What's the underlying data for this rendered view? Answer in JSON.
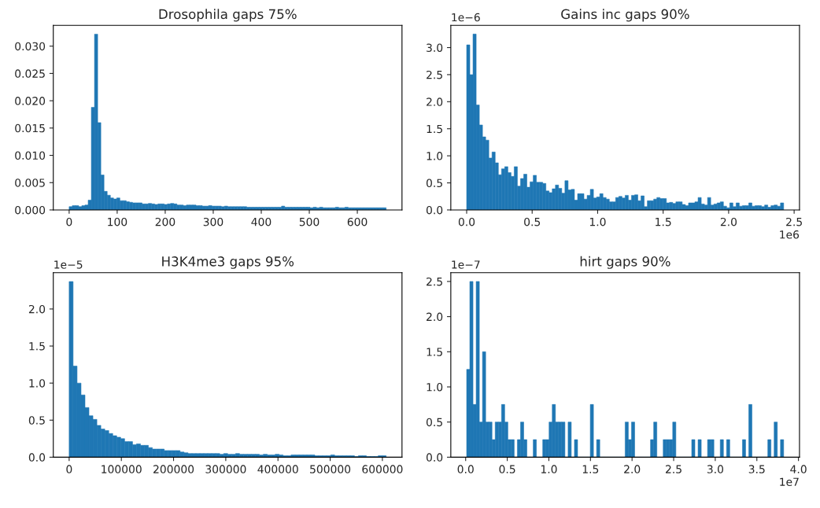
{
  "chart_data": [
    {
      "type": "histogram",
      "title": "Drosophila gaps 75%",
      "color": "#1f77b4",
      "bins": [
        0,
        6.6,
        13.2,
        19.8,
        26.4,
        33,
        39.6,
        46.2,
        52.8,
        59.4,
        66,
        72.6,
        79.2,
        85.8,
        92.4,
        99,
        105.6,
        112.2,
        118.8,
        125.4,
        132,
        138.6,
        145.2,
        151.8,
        158.4,
        165,
        171.6,
        178.2,
        184.8,
        191.4,
        198,
        204.6,
        211.2,
        217.8,
        224.4,
        231,
        237.6,
        244.2,
        250.8,
        257.4,
        264,
        270.6,
        277.2,
        283.8,
        290.4,
        297,
        303.6,
        310.2,
        316.8,
        323.4,
        330,
        336.6,
        343.2,
        349.8,
        356.4,
        363,
        369.6,
        376.2,
        382.8,
        389.4,
        396,
        402.6,
        409.2,
        415.8,
        422.4,
        429,
        435.6,
        442.2,
        448.8,
        455.4,
        462,
        468.6,
        475.2,
        481.8,
        488.4,
        495,
        501.6,
        508.2,
        514.8,
        521.4,
        528,
        534.6,
        541.2,
        547.8,
        554.4,
        561,
        567.6,
        574.2,
        580.8,
        587.4,
        594,
        600.6,
        607.2,
        613.8,
        620.4,
        627,
        633.6,
        640.2,
        646.8,
        653.4,
        660
      ],
      "values": [
        0.0006,
        0.0008,
        0.0008,
        0.0006,
        0.0008,
        0.0009,
        0.0018,
        0.0188,
        0.0322,
        0.016,
        0.0064,
        0.0034,
        0.0027,
        0.0022,
        0.002,
        0.0022,
        0.0017,
        0.0017,
        0.0015,
        0.0014,
        0.0013,
        0.0013,
        0.0013,
        0.0011,
        0.0011,
        0.0012,
        0.0011,
        0.001,
        0.0011,
        0.0011,
        0.001,
        0.0011,
        0.0012,
        0.0011,
        0.0009,
        0.0009,
        0.0008,
        0.0009,
        0.0009,
        0.0009,
        0.0008,
        0.0008,
        0.0007,
        0.0007,
        0.0008,
        0.0007,
        0.0007,
        0.0007,
        0.0006,
        0.0007,
        0.0006,
        0.0006,
        0.0006,
        0.0006,
        0.0006,
        0.0006,
        0.0005,
        0.0005,
        0.0005,
        0.0005,
        0.0005,
        0.0005,
        0.0005,
        0.0005,
        0.0005,
        0.0005,
        0.0005,
        0.0007,
        0.0005,
        0.0005,
        0.0005,
        0.0005,
        0.0005,
        0.0005,
        0.0005,
        0.0005,
        0.0004,
        0.0005,
        0.0004,
        0.0005,
        0.0004,
        0.0004,
        0.0004,
        0.0004,
        0.0005,
        0.0004,
        0.0004,
        0.0005,
        0.0004,
        0.0004,
        0.0004,
        0.0004,
        0.0004,
        0.0004,
        0.0004,
        0.0004,
        0.0004,
        0.0004,
        0.0004,
        0.0004
      ],
      "xlim": [
        -33,
        693
      ],
      "xticks": [
        0,
        100,
        200,
        300,
        400,
        500,
        600
      ],
      "ylim": [
        0,
        0.0338
      ],
      "yticks": [
        {
          "value": 0,
          "label": "0.000"
        },
        {
          "value": 0.005,
          "label": "0.005"
        },
        {
          "value": 0.01,
          "label": "0.010"
        },
        {
          "value": 0.015,
          "label": "0.015"
        },
        {
          "value": 0.02,
          "label": "0.020"
        },
        {
          "value": 0.025,
          "label": "0.025"
        },
        {
          "value": 0.03,
          "label": "0.030"
        }
      ]
    },
    {
      "type": "histogram",
      "title": "Gains inc gaps 90%",
      "color": "#1f77b4",
      "annotations": [
        "1e−6",
        "1e6"
      ],
      "bins": [
        0,
        0.0242,
        0.0484,
        0.0726,
        0.0968,
        0.121,
        0.1452,
        0.1694,
        0.1936,
        0.2178,
        0.242,
        0.2662,
        0.2904,
        0.3146,
        0.3388,
        0.363,
        0.3872,
        0.4114,
        0.4356,
        0.4598,
        0.484,
        0.5082,
        0.5324,
        0.5566,
        0.5808,
        0.605,
        0.6292,
        0.6534,
        0.6776,
        0.7018,
        0.726,
        0.7502,
        0.7744,
        0.7986,
        0.8228,
        0.847,
        0.8712,
        0.8954,
        0.9196,
        0.9438,
        0.968,
        0.9922,
        1.0164,
        1.0406,
        1.0648,
        1.089,
        1.1132,
        1.1374,
        1.1616,
        1.1858,
        1.21,
        1.2342,
        1.2584,
        1.2826,
        1.3068,
        1.331,
        1.3552,
        1.3794,
        1.4036,
        1.4278,
        1.452,
        1.4762,
        1.5004,
        1.5246,
        1.5488,
        1.573,
        1.5972,
        1.6214,
        1.6456,
        1.6698,
        1.694,
        1.7182,
        1.7424,
        1.7666,
        1.7908,
        1.815,
        1.8392,
        1.8634,
        1.8876,
        1.9118,
        1.936,
        1.9602,
        1.9844,
        2.0086,
        2.0328,
        2.057,
        2.0812,
        2.1054,
        2.1296,
        2.1538,
        2.178,
        2.2022,
        2.2264,
        2.2506,
        2.2748,
        2.299,
        2.3232,
        2.3474,
        2.3716,
        2.3958,
        2.42
      ],
      "values": [
        3.05,
        2.5,
        3.25,
        1.94,
        1.57,
        1.35,
        1.29,
        0.96,
        1.07,
        0.87,
        0.65,
        0.76,
        0.8,
        0.69,
        0.62,
        0.8,
        0.44,
        0.58,
        0.66,
        0.42,
        0.52,
        0.64,
        0.51,
        0.51,
        0.49,
        0.35,
        0.32,
        0.39,
        0.46,
        0.4,
        0.31,
        0.54,
        0.37,
        0.38,
        0.18,
        0.3,
        0.3,
        0.2,
        0.27,
        0.38,
        0.22,
        0.24,
        0.3,
        0.23,
        0.2,
        0.15,
        0.15,
        0.23,
        0.25,
        0.22,
        0.27,
        0.18,
        0.27,
        0.28,
        0.17,
        0.26,
        0.06,
        0.17,
        0.17,
        0.2,
        0.23,
        0.21,
        0.21,
        0.13,
        0.14,
        0.12,
        0.15,
        0.15,
        0.1,
        0.08,
        0.13,
        0.13,
        0.15,
        0.23,
        0.11,
        0.09,
        0.23,
        0.09,
        0.11,
        0.13,
        0.15,
        0.07,
        0.04,
        0.13,
        0.06,
        0.13,
        0.07,
        0.08,
        0.08,
        0.13,
        0.07,
        0.08,
        0.08,
        0.06,
        0.09,
        0.05,
        0.08,
        0.09,
        0.07,
        0.13
      ],
      "xlim": [
        -0.121,
        2.541
      ],
      "xticks": [
        {
          "value": 0,
          "label": "0.0"
        },
        0.5,
        {
          "value": 1,
          "label": "1.0"
        },
        1.5,
        {
          "value": 2,
          "label": "2.0"
        },
        2.5
      ],
      "ylim": [
        0,
        3.41
      ],
      "yticks": [
        {
          "value": 0,
          "label": "0.0"
        },
        0.5,
        {
          "value": 1,
          "label": "1.0"
        },
        1.5,
        {
          "value": 2,
          "label": "2.0"
        },
        2.5,
        {
          "value": 3,
          "label": "3.0"
        }
      ]
    },
    {
      "type": "histogram",
      "title": "H3K4me3 gaps 95%",
      "color": "#1f77b4",
      "annotations": [
        "1e−5"
      ],
      "bins": [
        0,
        7590,
        15180,
        22770,
        30360,
        37950,
        45540,
        53130,
        60720,
        68310,
        75900,
        83490,
        91080,
        98670,
        106260,
        113850,
        121440,
        129030,
        136620,
        144210,
        151800,
        159390,
        166980,
        174570,
        182160,
        189750,
        197340,
        204930,
        212520,
        220110,
        227700,
        235290,
        242880,
        250470,
        258060,
        265650,
        273240,
        280830,
        288420,
        296010,
        303600,
        311190,
        318780,
        326370,
        333960,
        341550,
        349140,
        356730,
        364320,
        371910,
        379500,
        387090,
        394680,
        402270,
        409860,
        417450,
        425040,
        432630,
        440220,
        447810,
        455400,
        462990,
        470580,
        478170,
        485760,
        493350,
        500940,
        508530,
        516120,
        523710,
        531300,
        538890,
        546480,
        554070,
        561660,
        569250,
        576840,
        584430,
        592020,
        599610,
        607200
      ],
      "values": [
        2.37,
        1.23,
        1.0,
        0.84,
        0.67,
        0.56,
        0.51,
        0.43,
        0.38,
        0.36,
        0.32,
        0.29,
        0.27,
        0.25,
        0.21,
        0.21,
        0.17,
        0.18,
        0.16,
        0.16,
        0.13,
        0.11,
        0.11,
        0.11,
        0.09,
        0.09,
        0.09,
        0.09,
        0.07,
        0.06,
        0.05,
        0.05,
        0.05,
        0.05,
        0.05,
        0.05,
        0.05,
        0.05,
        0.04,
        0.05,
        0.04,
        0.04,
        0.05,
        0.04,
        0.04,
        0.04,
        0.04,
        0.04,
        0.03,
        0.04,
        0.03,
        0.03,
        0.04,
        0.03,
        0.02,
        0.02,
        0.03,
        0.03,
        0.03,
        0.03,
        0.03,
        0.03,
        0.02,
        0.02,
        0.02,
        0.02,
        0.03,
        0.02,
        0.02,
        0.02,
        0.02,
        0.02,
        0.01,
        0.02,
        0.02,
        0.01,
        0.01,
        0.01,
        0.02,
        0.02
      ],
      "xlim": [
        -30360,
        637560
      ],
      "xticks": [
        0,
        100000,
        200000,
        300000,
        400000,
        500000,
        600000
      ],
      "ylim": [
        0,
        2.49
      ],
      "yticks": [
        {
          "value": 0,
          "label": "0.0"
        },
        0.5,
        {
          "value": 1,
          "label": "1.0"
        },
        1.5,
        {
          "value": 2,
          "label": "2.0"
        }
      ]
    },
    {
      "type": "histogram",
      "title": "hirt gaps 90%",
      "color": "#1f77b4",
      "annotations": [
        "1e−7",
        "1e7"
      ],
      "bins": [
        0.012,
        0.0501,
        0.0882,
        0.1263,
        0.1644,
        0.2025,
        0.2406,
        0.2787,
        0.3168,
        0.3549,
        0.393,
        0.4311,
        0.4692,
        0.5073,
        0.5454,
        0.5835,
        0.6216,
        0.6597,
        0.6978,
        0.7359,
        0.774,
        0.8121,
        0.8502,
        0.8883,
        0.9264,
        0.9645,
        1.0026,
        1.0407,
        1.0788,
        1.1169,
        1.155,
        1.1931,
        1.2312,
        1.2693,
        1.3074,
        1.3455,
        1.3836,
        1.4217,
        1.4598,
        1.4979,
        1.536,
        1.5741,
        1.6122,
        1.6503,
        1.6884,
        1.7265,
        1.7646,
        1.8027,
        1.8408,
        1.8789,
        1.917,
        1.9551,
        1.9932,
        2.0313,
        2.0694,
        2.1075,
        2.1456,
        2.1837,
        2.2218,
        2.2599,
        2.298,
        2.3361,
        2.3742,
        2.4123,
        2.4504,
        2.4885,
        2.5266,
        2.5647,
        2.6028,
        2.6409,
        2.679,
        2.7171,
        2.7552,
        2.7933,
        2.8314,
        2.8695,
        2.9076,
        2.9457,
        2.9838,
        3.0219,
        3.06,
        3.0981,
        3.1362,
        3.1743,
        3.2124,
        3.2505,
        3.2886,
        3.3267,
        3.3648,
        3.4029,
        3.441,
        3.4791,
        3.5172,
        3.5553,
        3.5934,
        3.6315,
        3.6696,
        3.7077,
        3.7458,
        3.7839,
        3.822
      ],
      "values": [
        1.25,
        2.5,
        0.75,
        2.5,
        0.5,
        1.5,
        0.5,
        0.5,
        0.25,
        0.5,
        0.5,
        0.75,
        0.5,
        0.25,
        0.25,
        0,
        0.25,
        0.5,
        0.25,
        0,
        0,
        0.25,
        0,
        0,
        0.25,
        0.25,
        0.5,
        0.75,
        0.5,
        0.5,
        0.5,
        0,
        0.5,
        0,
        0.25,
        0,
        0,
        0,
        0,
        0.75,
        0,
        0.25,
        0,
        0,
        0,
        0,
        0,
        0,
        0,
        0,
        0.5,
        0.25,
        0.5,
        0,
        0,
        0,
        0,
        0,
        0.25,
        0.5,
        0,
        0,
        0.25,
        0.25,
        0.25,
        0.5,
        0,
        0,
        0,
        0,
        0,
        0.25,
        0,
        0.25,
        0,
        0,
        0.25,
        0.25,
        0,
        0,
        0.25,
        0,
        0.25,
        0,
        0,
        0,
        0,
        0.25,
        0,
        0.75,
        0,
        0,
        0,
        0,
        0,
        0.25,
        0,
        0.5,
        0,
        0.25
      ],
      "xlim": [
        -0.1785,
        4.0125
      ],
      "xticks": [
        {
          "value": 0,
          "label": "0.0"
        },
        0.5,
        {
          "value": 1,
          "label": "1.0"
        },
        1.5,
        {
          "value": 2,
          "label": "2.0"
        },
        2.5,
        {
          "value": 3,
          "label": "3.0"
        },
        3.5,
        {
          "value": 4,
          "label": "4.0"
        }
      ],
      "ylim": [
        0,
        2.625
      ],
      "yticks": [
        {
          "value": 0,
          "label": "0.0"
        },
        0.5,
        {
          "value": 1,
          "label": "1.0"
        },
        1.5,
        {
          "value": 2,
          "label": "2.0"
        },
        2.5
      ]
    }
  ]
}
